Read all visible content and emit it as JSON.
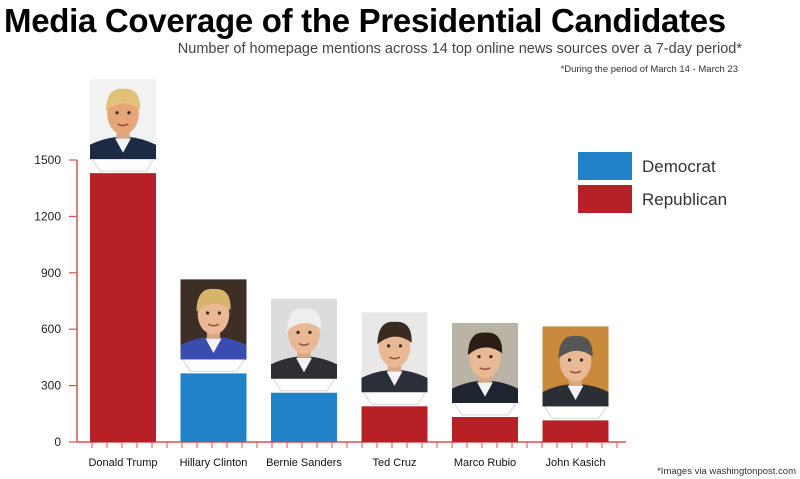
{
  "header": {
    "title": "Media Coverage of the Presidential Candidates",
    "subtitle": "Number of homepage mentions across 14 top online news sources over a 7-day period*",
    "footnote": "*During the period of March 14 - March 23"
  },
  "credit": "*Images via washingtonpost.com",
  "colors": {
    "democrat": "#2182c8",
    "republican": "#b72126",
    "axis": "#d9534f"
  },
  "chart_data": {
    "type": "bar",
    "title": "Media Coverage of the Presidential Candidates",
    "xlabel": "",
    "ylabel": "",
    "ylim": [
      0,
      1500
    ],
    "yticks": [
      "0",
      "300",
      "600",
      "900",
      "1200",
      "1500"
    ],
    "grid": false,
    "legend_position": "top-right",
    "legend": [
      {
        "label": "Democrat",
        "party": "democrat"
      },
      {
        "label": "Republican",
        "party": "republican"
      }
    ],
    "categories": [
      "Donald Trump",
      "Hillary Clinton",
      "Bernie Sanders",
      "Ted Cruz",
      "Marco Rubio",
      "John Kasich"
    ],
    "values": [
      1430,
      365,
      262,
      190,
      133,
      115
    ],
    "parties": [
      "republican",
      "democrat",
      "democrat",
      "republican",
      "republican",
      "republican"
    ],
    "photo_icons": [
      "trump-portrait",
      "clinton-portrait",
      "sanders-portrait",
      "cruz-portrait",
      "rubio-portrait",
      "kasich-portrait"
    ]
  }
}
